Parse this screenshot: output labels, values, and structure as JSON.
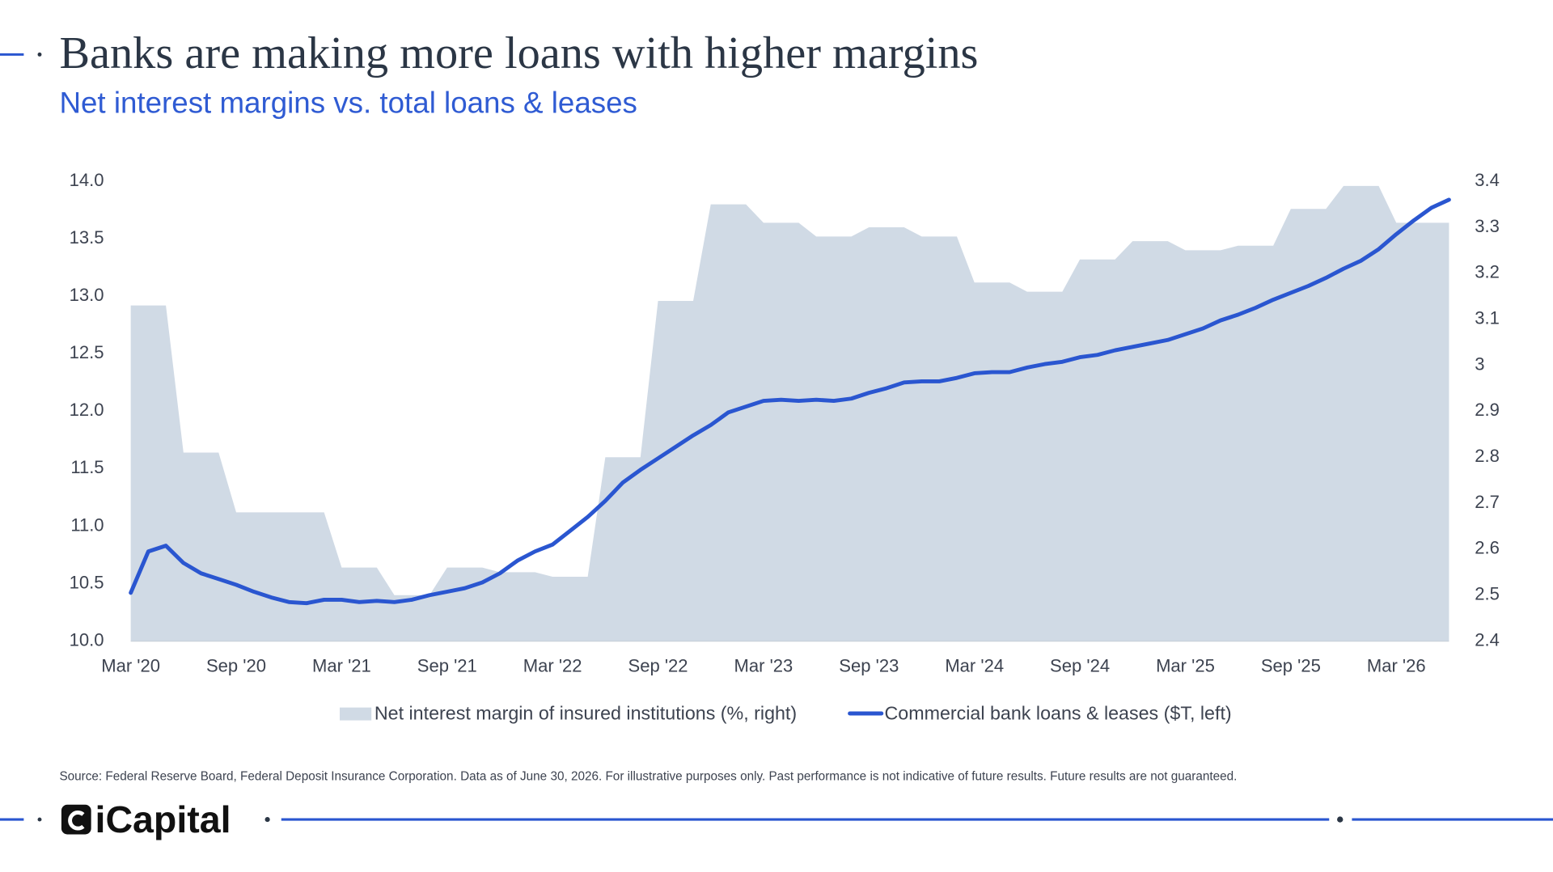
{
  "chart_data": {
    "type": "area-line",
    "title": "Banks are making more loans with higher margins",
    "subtitle": "Net interest margins vs. total loans & leases",
    "source": "Source: Federal Reserve Board, Federal Deposit Insurance Corporation. Data as of June 30, 2026. For illustrative purposes only. Past performance is not indicative of future results. Future results are not guaranteed.",
    "brand": "iCapital",
    "categories": [
      "Mar '20",
      null,
      null,
      null,
      null,
      null,
      "Sep '20",
      null,
      null,
      null,
      null,
      null,
      "Mar '21",
      null,
      null,
      null,
      null,
      null,
      "Sep '21",
      null,
      null,
      null,
      null,
      null,
      "Mar '22",
      null,
      null,
      null,
      null,
      null,
      "Sep '22",
      null,
      null,
      null,
      null,
      null,
      "Mar '23",
      null,
      null,
      null,
      null,
      null,
      "Sep '23",
      null,
      null,
      null,
      null,
      null,
      "Mar '24",
      null,
      null,
      null,
      null,
      null,
      "Sep '24",
      null,
      null,
      null,
      null,
      null,
      "Mar '25",
      null,
      null,
      null,
      null,
      null,
      "Sep '25",
      null,
      null,
      null,
      null,
      null,
      "Mar '26",
      null,
      null,
      null
    ],
    "series": [
      {
        "name": "Net interest margin of insured institutions (%, right)",
        "type": "area",
        "axis": "y2",
        "color": "#d0dae5",
        "values": [
          3.13,
          3.13,
          3.13,
          2.81,
          2.81,
          2.81,
          2.68,
          2.68,
          2.68,
          2.68,
          2.68,
          2.68,
          2.56,
          2.56,
          2.56,
          2.5,
          2.5,
          2.5,
          2.56,
          2.56,
          2.56,
          2.55,
          2.55,
          2.55,
          2.54,
          2.54,
          2.54,
          2.8,
          2.8,
          2.8,
          3.14,
          3.14,
          3.14,
          3.35,
          3.35,
          3.35,
          3.31,
          3.31,
          3.31,
          3.28,
          3.28,
          3.28,
          3.3,
          3.3,
          3.3,
          3.28,
          3.28,
          3.28,
          3.18,
          3.18,
          3.18,
          3.16,
          3.16,
          3.16,
          3.23,
          3.23,
          3.23,
          3.27,
          3.27,
          3.27,
          3.25,
          3.25,
          3.25,
          3.26,
          3.26,
          3.26,
          3.34,
          3.34,
          3.34,
          3.39,
          3.39,
          3.39,
          3.31,
          3.31,
          3.31,
          3.31
        ]
      },
      {
        "name": "Commercial bank loans & leases ($T, left)",
        "type": "line",
        "axis": "y",
        "color": "#2a56d0",
        "values": [
          10.42,
          10.78,
          10.83,
          10.68,
          10.59,
          10.54,
          10.49,
          10.43,
          10.38,
          10.34,
          10.33,
          10.36,
          10.36,
          10.34,
          10.35,
          10.34,
          10.36,
          10.4,
          10.43,
          10.46,
          10.51,
          10.59,
          10.7,
          10.78,
          10.84,
          10.96,
          11.08,
          11.22,
          11.38,
          11.49,
          11.59,
          11.69,
          11.79,
          11.88,
          11.99,
          12.04,
          12.09,
          12.1,
          12.09,
          12.1,
          12.09,
          12.11,
          12.16,
          12.2,
          12.25,
          12.26,
          12.26,
          12.29,
          12.33,
          12.34,
          12.34,
          12.38,
          12.41,
          12.43,
          12.47,
          12.49,
          12.53,
          12.56,
          12.59,
          12.62,
          12.67,
          12.72,
          12.79,
          12.84,
          12.9,
          12.97,
          13.03,
          13.09,
          13.16,
          13.24,
          13.31,
          13.41,
          13.54,
          13.66,
          13.77,
          13.84
        ]
      }
    ],
    "ylim": [
      10,
      14
    ],
    "yticks": [
      {
        "value": 10,
        "label": "10.0"
      },
      10.5,
      {
        "value": 11,
        "label": "11.0"
      },
      11.5,
      {
        "value": 12,
        "label": "12.0"
      },
      12.5,
      {
        "value": 13,
        "label": "13.0"
      },
      13.5,
      {
        "value": 14,
        "label": "14.0"
      }
    ],
    "y2lim": [
      2.4,
      3.4
    ],
    "y2ticks": [
      2.4,
      2.5,
      2.6,
      2.7,
      2.8,
      2.9,
      3,
      3.1,
      3.2,
      3.3,
      3.4
    ],
    "grid": false
  }
}
